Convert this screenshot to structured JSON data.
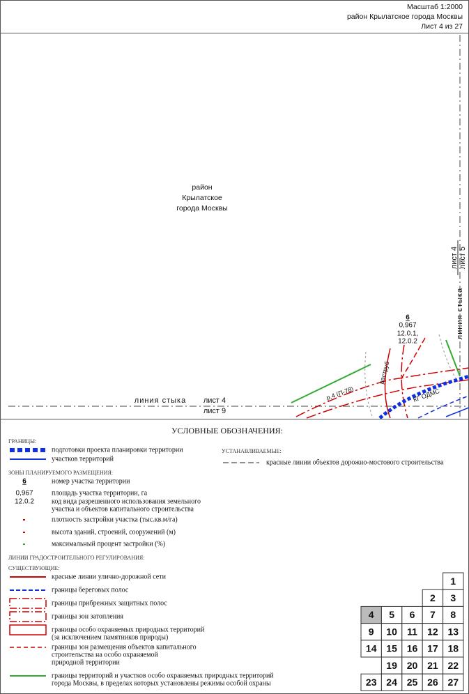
{
  "header": {
    "scale": "Масштаб 1:2000",
    "district": "район Крылатское города Москвы",
    "sheet": "Лист 4 из 27"
  },
  "map": {
    "district_label": [
      "район",
      "Крылатское",
      "города Москвы"
    ],
    "joint_right": [
      "лист 4",
      "лист 5"
    ],
    "joint_right_label": "линия стыка",
    "joint_bottom_label": "линия стыка",
    "joint_bottom": [
      "лист 4",
      "лист 9"
    ],
    "plot": {
      "number": "6",
      "area": "0,967",
      "codes": [
        "12.0.1,",
        "12.0.2"
      ]
    },
    "labels": [
      "р.4 (П-78)",
      "раструб",
      "КГ ОДМС"
    ]
  },
  "legend": {
    "title": "УСЛОВНЫЕ ОБОЗНАЧЕНИЯ:",
    "borders": {
      "heading": "ГРАНИЦЫ:",
      "items": [
        "подготовки проекта планировки территории",
        "участков территорий"
      ]
    },
    "established": {
      "heading": "УСТАНАВЛИВАЕМЫЕ:",
      "items": [
        "красные линии объектов дорожно-мостового строительства"
      ]
    },
    "zones": {
      "heading": "ЗОНЫ ПЛАНИРУЕМОГО РАЗМЕЩЕНИЯ:",
      "items": [
        {
          "sample": "6",
          "text": [
            "номер участка территории"
          ]
        },
        {
          "sample": "0,967",
          "text": [
            "площадь участка территории, га"
          ]
        },
        {
          "sample": "12.0.2",
          "text": [
            "код вида разрешенного использования земельного",
            "участка и объектов капитального строительства"
          ]
        },
        {
          "text": [
            "плотность застройки участка (тыс.кв.м/га)"
          ]
        },
        {
          "text": [
            "высота зданий, строений, сооружений (м)"
          ]
        },
        {
          "text": [
            "максимальный процент застройки (%)"
          ]
        }
      ]
    },
    "regulation": {
      "heading": "ЛИНИИ ГРАДОСТРОИТЕЛЬНОГО РЕГУЛИРОВАНИЯ:",
      "subheading": "СУЩЕСТВУЮЩИЕ:",
      "items": [
        [
          "красные линии улично-дорожной сети"
        ],
        [
          "границы береговых полос"
        ],
        [
          "границы прибрежных защитных полос"
        ],
        [
          "границы зон затопления"
        ],
        [
          "границы особо охраняемых природных территорий",
          "(за исключением памятников природы)"
        ],
        [
          "границы зон размещения объектов капитального",
          "строительства на особо охраняемой",
          "природной территории"
        ],
        [
          "границы территорий и участков особо охраняемых природных территорий",
          "города Москвы, в пределах которых установлены режимы особой охраны"
        ]
      ]
    }
  },
  "sheet_index": [
    "1",
    "2",
    "3",
    "4",
    "5",
    "6",
    "7",
    "8",
    "9",
    "10",
    "11",
    "12",
    "13",
    "14",
    "15",
    "16",
    "17",
    "18",
    "19",
    "20",
    "21",
    "22",
    "23",
    "24",
    "25",
    "26",
    "27"
  ]
}
